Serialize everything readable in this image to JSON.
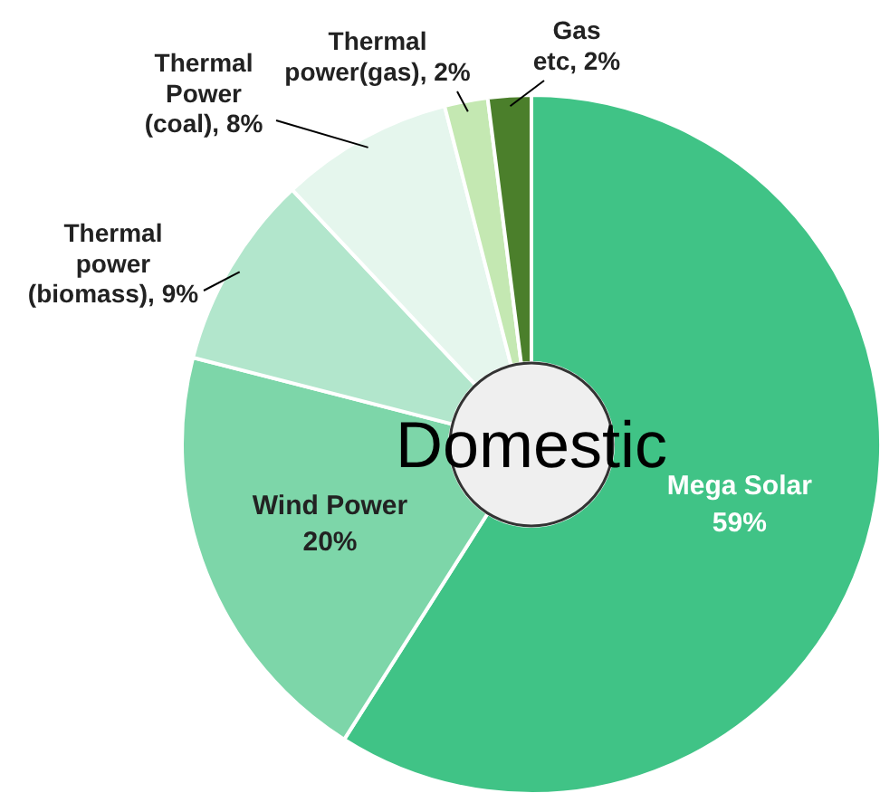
{
  "chart_data": {
    "type": "donut",
    "title": "Domestic",
    "categories": [
      "Mega Solar",
      "Wind Power",
      "Thermal power (biomass)",
      "Thermal Power (coal)",
      "Thermal power(gas)",
      "Gas etc"
    ],
    "values": [
      59,
      20,
      9,
      8,
      2,
      2
    ],
    "value_labels": [
      "59%",
      "20%",
      "9%",
      "8%",
      "2%",
      "2%"
    ],
    "colors": [
      "#40c386",
      "#7dd6a9",
      "#b2e6cc",
      "#e5f6ed",
      "#c4e8b2",
      "#4b7f2b"
    ],
    "legend": false
  }
}
